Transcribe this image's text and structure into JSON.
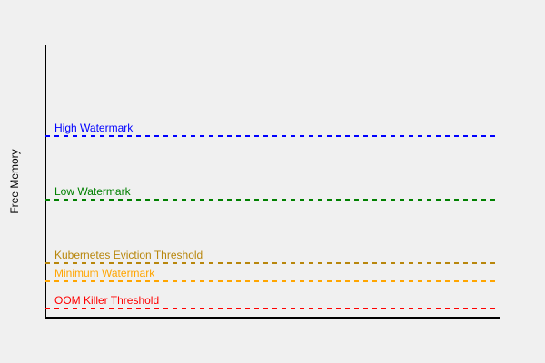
{
  "axis": {
    "ylabel": "Free Memory"
  },
  "thresholds": [
    {
      "label": "High Watermark",
      "color": "#0000ff"
    },
    {
      "label": "Low Watermark",
      "color": "#008000"
    },
    {
      "label": "Kubernetes Eviction Threshold",
      "color": "#b8860b"
    },
    {
      "label": "Minimum Watermark",
      "color": "#ffa500"
    },
    {
      "label": "OOM Killer Threshold",
      "color": "#ff0000"
    }
  ]
}
